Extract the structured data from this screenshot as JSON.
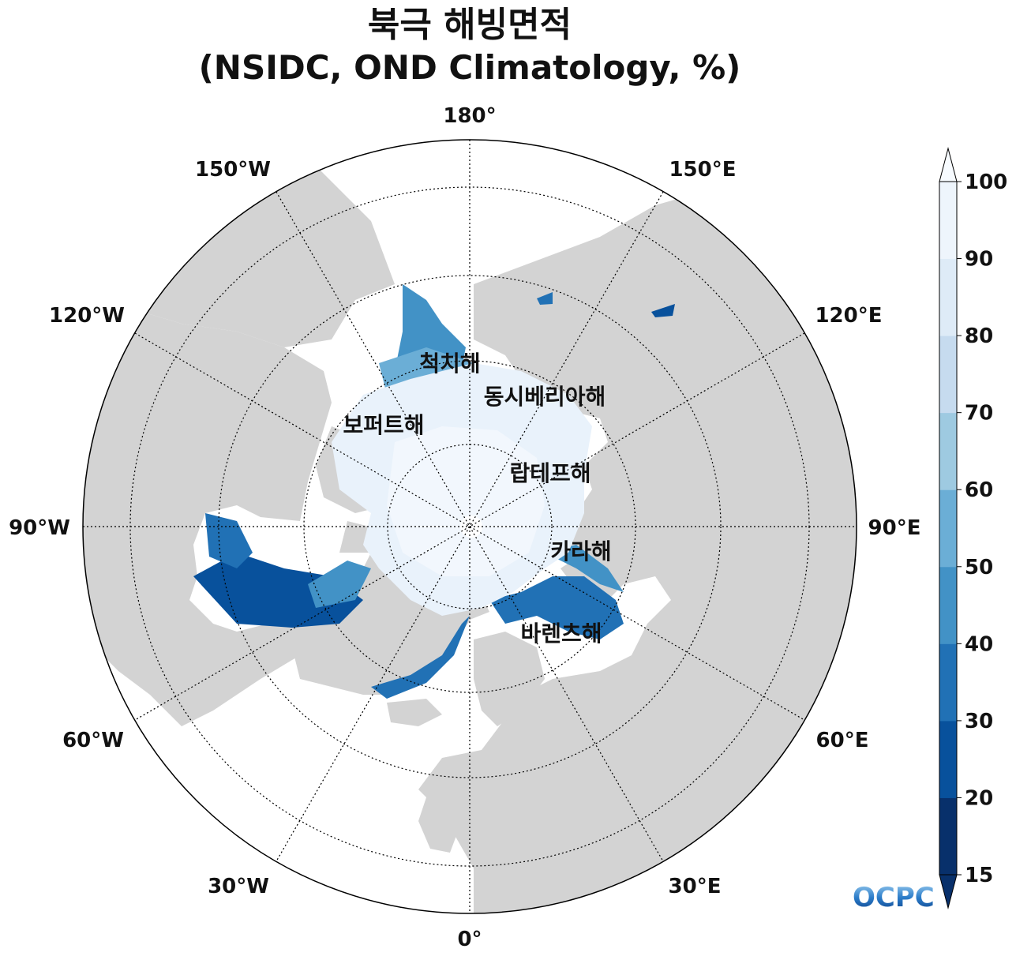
{
  "title": {
    "line1": "북극 해빙면적",
    "line2": "(NSIDC, OND Climatology, %)"
  },
  "longitude_labels": {
    "lon_180": "180°",
    "lon_150e": "150°E",
    "lon_120e": "120°E",
    "lon_90e": "90°E",
    "lon_60e": "60°E",
    "lon_30e": "30°E",
    "lon_0": "0°",
    "lon_30w": "30°W",
    "lon_60w": "60°W",
    "lon_90w": "90°W",
    "lon_120w": "120°W",
    "lon_150w": "150°W"
  },
  "seas": {
    "chukchi": "척치해",
    "east_siberian": "동시베리아해",
    "beaufort": "보퍼트해",
    "laptev": "랍테프해",
    "kara": "카라해",
    "barents": "바렌츠해"
  },
  "colorbar": {
    "ticks": [
      "100",
      "90",
      "80",
      "70",
      "60",
      "50",
      "40",
      "30",
      "20",
      "15"
    ],
    "levels": [
      15,
      20,
      30,
      40,
      50,
      60,
      70,
      80,
      90,
      100
    ],
    "colors": [
      "#08306b",
      "#08519c",
      "#2171b5",
      "#4292c6",
      "#6baed6",
      "#9ecae1",
      "#c6dbef",
      "#deebf7",
      "#eef5fc"
    ],
    "over_color": "#f7fbff",
    "under_color": "#08306b"
  },
  "colors": {
    "land": "#d3d3d3",
    "ocean": "#ffffff",
    "ice_core": "#e9f2fb",
    "ice_mid": "#f2f7fd"
  },
  "logo": {
    "text": "OCPC"
  }
}
